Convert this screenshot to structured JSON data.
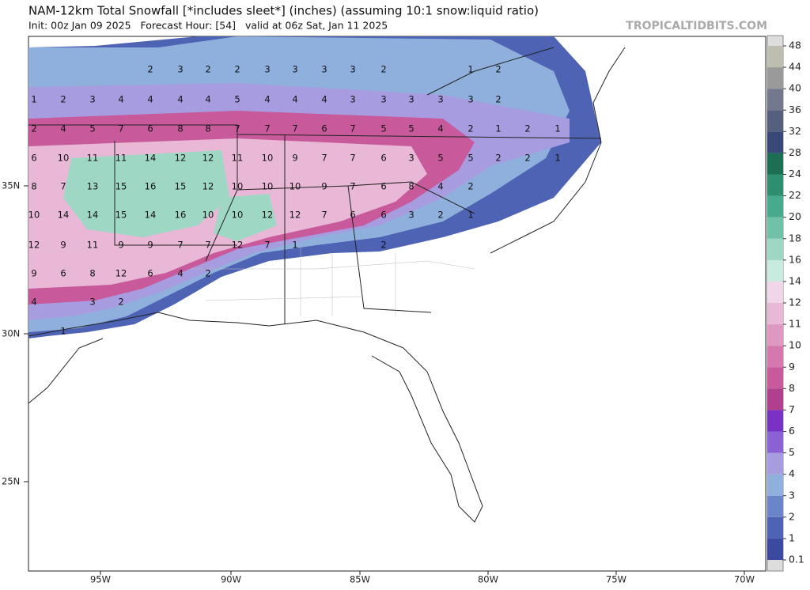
{
  "header": {
    "title": "NAM-12km Total Snowfall [*includes sleet*] (inches) (assuming 10:1 snow:liquid ratio)",
    "subtitle": "Init: 00z Jan 09 2025   Forecast Hour: [54]   valid at 06z Sat, Jan 11 2025",
    "brand": "TROPICALTIDBITS.COM"
  },
  "latitude_labels": [
    "35N",
    "30N",
    "25N"
  ],
  "longitude_labels": [
    "95W",
    "90W",
    "85W",
    "80W",
    "75W",
    "70W"
  ],
  "colorbar": {
    "labels": [
      "0.1",
      "1",
      "2",
      "3",
      "4",
      "5",
      "6",
      "7",
      "8",
      "9",
      "10",
      "11",
      "12",
      "14",
      "16",
      "18",
      "20",
      "22",
      "24",
      "28",
      "32",
      "36",
      "40",
      "44",
      "48"
    ],
    "colors": [
      "#3b4a9e",
      "#4e63b4",
      "#6b86c8",
      "#8fb0dc",
      "#a79ce0",
      "#8a62d4",
      "#7a32c4",
      "#b0408e",
      "#c85a9c",
      "#d478ae",
      "#de98c2",
      "#e8b8d6",
      "#f0d6e8",
      "#c8ebe0",
      "#9ed8c4",
      "#6fc2a8",
      "#48aa8c",
      "#2e8e70",
      "#1e6e54",
      "#3a4878",
      "#55607e",
      "#74788c",
      "#9a9a9a",
      "#bdbdb0"
    ]
  },
  "map_labels": [
    [
      2,
      3,
      2,
      2,
      3,
      3,
      3,
      3,
      2,
      1,
      2
    ],
    [
      1,
      2,
      3,
      4,
      4,
      4,
      4,
      5,
      4,
      4,
      4,
      3,
      3,
      3,
      3,
      3,
      2
    ],
    [
      2,
      4,
      5,
      7,
      6,
      8,
      8,
      7,
      7,
      7,
      6,
      7,
      5,
      5,
      4,
      2,
      1,
      2,
      1
    ],
    [
      6,
      10,
      11,
      11,
      14,
      12,
      12,
      11,
      10,
      9,
      7,
      7,
      6,
      3,
      5,
      5,
      2,
      2,
      1
    ],
    [
      8,
      7,
      13,
      15,
      16,
      15,
      12,
      10,
      10,
      10,
      9,
      7,
      6,
      8,
      4,
      2
    ],
    [
      10,
      14,
      14,
      15,
      14,
      16,
      10,
      10,
      12,
      12,
      7,
      6,
      6,
      3,
      2,
      1
    ],
    [
      12,
      9,
      11,
      9,
      9,
      7,
      7,
      12,
      7,
      1,
      2
    ],
    [
      9,
      6,
      8,
      12,
      6,
      4,
      2
    ],
    [
      4,
      3,
      2
    ],
    [
      1
    ]
  ]
}
